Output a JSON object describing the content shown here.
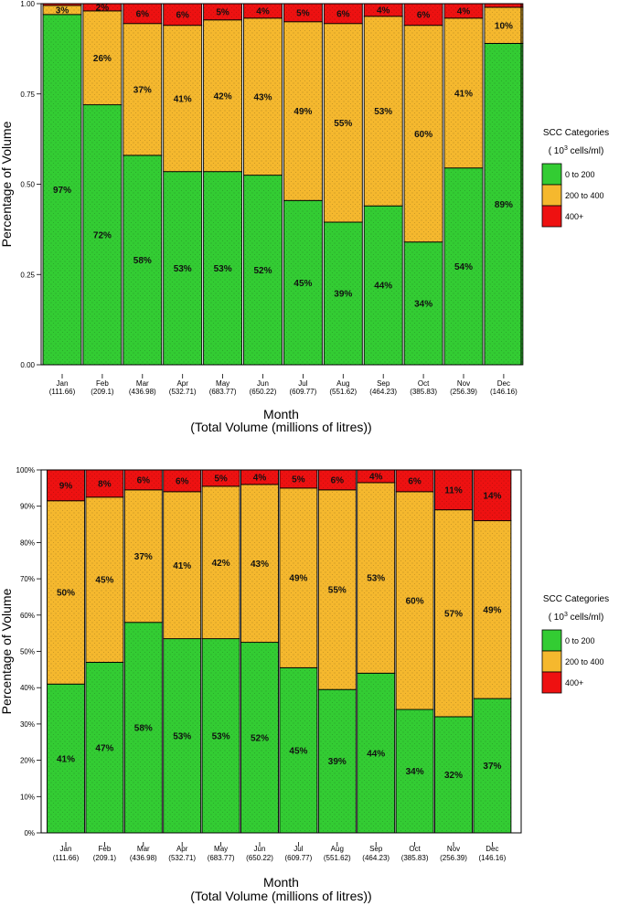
{
  "chart_data": [
    {
      "type": "bar",
      "stacked": true,
      "ylabel": "Percentage of Volume",
      "xlabel": "Month",
      "xlabel2": "(Total Volume (millions of litres))",
      "yticks": [
        "0.00",
        "0.25",
        "0.50",
        "0.75",
        "1.00"
      ],
      "ylim": [
        0,
        1
      ],
      "categories": [
        "Jan",
        "Feb",
        "Mar",
        "Apr",
        "May",
        "Jun",
        "Jul",
        "Aug",
        "Sep",
        "Oct",
        "Nov",
        "Dec"
      ],
      "volumes": [
        "(111.66)",
        "(209.1)",
        "(436.98)",
        "(532.71)",
        "(683.77)",
        "(650.22)",
        "(609.77)",
        "(551.62)",
        "(464.23)",
        "(385.83)",
        "(256.39)",
        "(146.16)"
      ],
      "series": [
        {
          "name": "0 to 200",
          "color": "#33cc33",
          "values": [
            0.97,
            0.72,
            0.58,
            0.535,
            0.535,
            0.525,
            0.455,
            0.395,
            0.44,
            0.34,
            0.545,
            0.89
          ],
          "labels": [
            "97%",
            "72%",
            "58%",
            "53%",
            "53%",
            "52%",
            "45%",
            "39%",
            "44%",
            "34%",
            "54%",
            "89%"
          ]
        },
        {
          "name": "200 to 400",
          "color": "#f5b82e",
          "values": [
            0.025,
            0.26,
            0.365,
            0.405,
            0.42,
            0.435,
            0.495,
            0.55,
            0.525,
            0.6,
            0.415,
            0.1
          ],
          "labels": [
            "3%",
            "26%",
            "37%",
            "41%",
            "42%",
            "43%",
            "49%",
            "55%",
            "53%",
            "60%",
            "41%",
            "10%"
          ]
        },
        {
          "name": "400+",
          "color": "#ee1111",
          "values": [
            0.005,
            0.02,
            0.055,
            0.06,
            0.045,
            0.04,
            0.05,
            0.055,
            0.035,
            0.06,
            0.04,
            0.01
          ],
          "labels": [
            "",
            "2%",
            "6%",
            "6%",
            "5%",
            "4%",
            "5%",
            "6%",
            "4%",
            "6%",
            "4%",
            ""
          ]
        }
      ],
      "legend": {
        "title": "SCC Categories",
        "subtitle_pre": "( 10",
        "subtitle_exp": "3",
        "subtitle_post": "  cells/ml)",
        "position": "right"
      }
    },
    {
      "type": "bar",
      "stacked": true,
      "ylabel": "Percentage of Volume",
      "xlabel": "Month",
      "xlabel2": "(Total Volume (millions of litres))",
      "yticks": [
        "0%",
        "10%",
        "20%",
        "30%",
        "40%",
        "50%",
        "60%",
        "70%",
        "80%",
        "90%",
        "100%"
      ],
      "ylim": [
        0,
        1
      ],
      "categories": [
        "Jan",
        "Feb",
        "Mar",
        "Apr",
        "May",
        "Jun",
        "Jul",
        "Aug",
        "Sep",
        "Oct",
        "Nov",
        "Dec"
      ],
      "volumes": [
        "(111.66)",
        "(209.1)",
        "(436.98)",
        "(532.71)",
        "(683.77)",
        "(650.22)",
        "(609.77)",
        "(551.62)",
        "(464.23)",
        "(385.83)",
        "(256.39)",
        "(146.16)"
      ],
      "series": [
        {
          "name": "0 to 200",
          "color": "#33cc33",
          "values": [
            0.41,
            0.47,
            0.58,
            0.535,
            0.535,
            0.525,
            0.455,
            0.395,
            0.44,
            0.34,
            0.32,
            0.37
          ],
          "labels": [
            "41%",
            "47%",
            "58%",
            "53%",
            "53%",
            "52%",
            "45%",
            "39%",
            "44%",
            "34%",
            "32%",
            "37%"
          ]
        },
        {
          "name": "200 to 400",
          "color": "#f5b82e",
          "values": [
            0.505,
            0.455,
            0.365,
            0.405,
            0.42,
            0.435,
            0.495,
            0.55,
            0.525,
            0.6,
            0.57,
            0.49
          ],
          "labels": [
            "50%",
            "45%",
            "37%",
            "41%",
            "42%",
            "43%",
            "49%",
            "55%",
            "53%",
            "60%",
            "57%",
            "49%"
          ]
        },
        {
          "name": "400+",
          "color": "#ee1111",
          "values": [
            0.085,
            0.075,
            0.055,
            0.06,
            0.045,
            0.04,
            0.05,
            0.055,
            0.035,
            0.06,
            0.11,
            0.14
          ],
          "labels": [
            "9%",
            "8%",
            "6%",
            "6%",
            "5%",
            "4%",
            "5%",
            "6%",
            "4%",
            "6%",
            "11%",
            "14%"
          ]
        }
      ],
      "legend": {
        "title": "SCC Categories",
        "subtitle_pre": "( 10",
        "subtitle_exp": "3",
        "subtitle_post": "  cells/ml)",
        "position": "right"
      }
    }
  ]
}
